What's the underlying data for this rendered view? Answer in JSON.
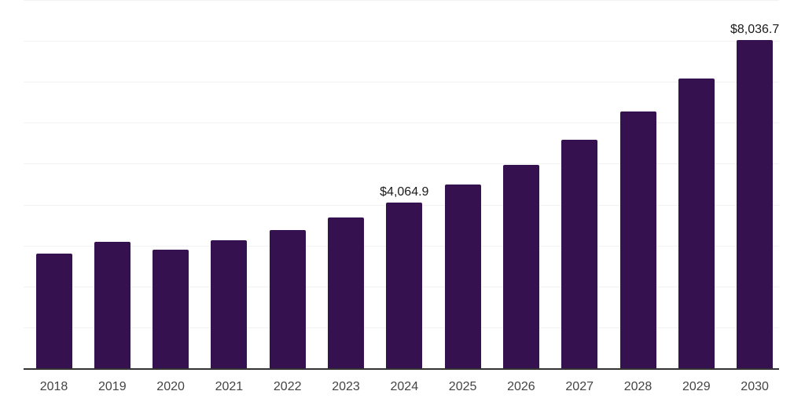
{
  "chart_data": {
    "type": "bar",
    "title": "",
    "xlabel": "",
    "ylabel": "",
    "categories": [
      "2018",
      "2019",
      "2020",
      "2021",
      "2022",
      "2023",
      "2024",
      "2025",
      "2026",
      "2027",
      "2028",
      "2029",
      "2030"
    ],
    "values": [
      2825,
      3100,
      2910,
      3150,
      3390,
      3700,
      4064.9,
      4510,
      4990,
      5600,
      6300,
      7100,
      8036.7
    ],
    "data_labels": [
      "",
      "",
      "",
      "",
      "",
      "",
      "$4,064.9",
      "",
      "",
      "",
      "",
      "",
      "$8,036.7"
    ],
    "ylim": [
      0,
      9000
    ],
    "gridline_step": 1000,
    "grid": "horizontal-only",
    "y_axis_tick_labels": "none",
    "legend": "none",
    "colors": {
      "bar": "#36114f",
      "gridline": "#f2f2f2",
      "axis_line": "#333333",
      "tick_label": "#444444",
      "data_label": "#1a1a1a",
      "background": "#ffffff"
    }
  }
}
